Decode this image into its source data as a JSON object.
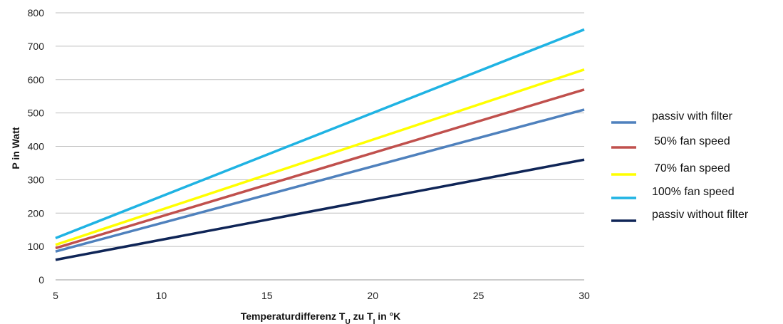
{
  "chart_data": {
    "type": "line",
    "xlabel_main": "Temperaturdifferenz T",
    "xlabel_sub1": "U",
    "xlabel_mid": " zu T",
    "xlabel_sub2": "I",
    "xlabel_end": " in °K",
    "ylabel": "P in Watt",
    "xlim": [
      5,
      30
    ],
    "ylim": [
      0,
      800
    ],
    "xticks": [
      5,
      10,
      15,
      20,
      25,
      30
    ],
    "yticks": [
      0,
      100,
      200,
      300,
      400,
      500,
      600,
      700,
      800
    ],
    "grid": "horizontal",
    "legend_position": "right",
    "series": [
      {
        "name": "passiv with filter",
        "color": "#4f81bd",
        "x": [
          5,
          30
        ],
        "values": [
          85,
          510
        ]
      },
      {
        "name": "50% fan speed",
        "color": "#c0504d",
        "x": [
          5,
          30
        ],
        "values": [
          95,
          570
        ]
      },
      {
        "name": "70% fan speed",
        "color": "#ffff00",
        "x": [
          5,
          30
        ],
        "values": [
          105,
          630
        ]
      },
      {
        "name": "100% fan speed",
        "color": "#1fb3e3",
        "x": [
          5,
          30
        ],
        "values": [
          125,
          750
        ]
      },
      {
        "name": "passiv without filter",
        "color": "#0f2557",
        "x": [
          5,
          30
        ],
        "values": [
          60,
          360
        ]
      }
    ]
  }
}
